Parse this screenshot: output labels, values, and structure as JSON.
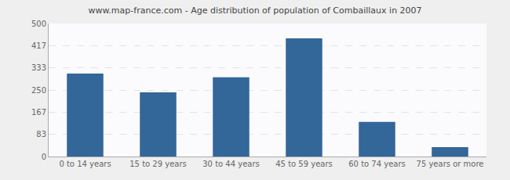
{
  "chart_data": {
    "type": "bar",
    "title": "www.map-france.com - Age distribution of population of Combaillaux in 2007",
    "categories": [
      "0 to 14 years",
      "15 to 29 years",
      "30 to 44 years",
      "45 to 59 years",
      "60 to 74 years",
      "75 years or more"
    ],
    "values": [
      312,
      241,
      298,
      444,
      130,
      35
    ],
    "color": "#336699",
    "ylim": [
      0,
      500
    ],
    "yticks": [
      0,
      83,
      167,
      250,
      333,
      417,
      500
    ],
    "grid": true
  }
}
